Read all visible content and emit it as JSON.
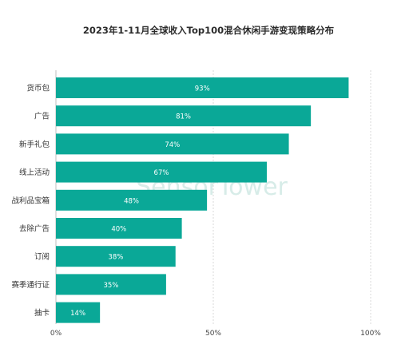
{
  "chart_data": {
    "type": "bar",
    "orientation": "horizontal",
    "title": "2023年1-11月全球收入Top100混合休闲手游变现策略分布",
    "categories": [
      "货币包",
      "广告",
      "新手礼包",
      "线上活动",
      "战利品宝箱",
      "去除广告",
      "订阅",
      "赛季通行证",
      "抽卡"
    ],
    "values": [
      93,
      81,
      74,
      67,
      48,
      40,
      38,
      35,
      14
    ],
    "value_labels": [
      "93%",
      "81%",
      "74%",
      "67%",
      "48%",
      "40%",
      "38%",
      "35%",
      "14%"
    ],
    "xlim": [
      0,
      100
    ],
    "x_ticks": [
      0,
      50,
      100
    ],
    "x_tick_labels": [
      "0%",
      "50%",
      "100%"
    ],
    "grid": true,
    "bar_color": "#0aa897",
    "watermark": "SensorTower"
  }
}
